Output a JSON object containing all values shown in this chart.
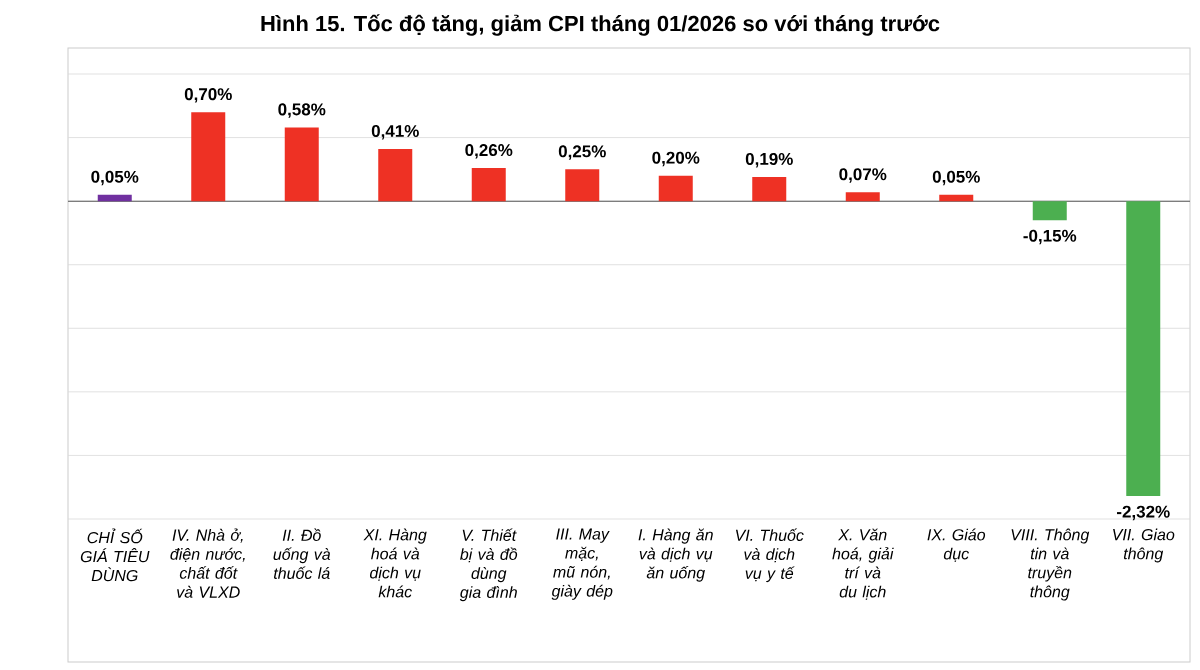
{
  "chart_data": {
    "type": "bar",
    "title": "Hình 15. Tốc độ tăng, giảm CPI tháng 01/2026 so với tháng trước",
    "categories": [
      "CHỈ SỐ GIÁ TIÊU DÙNG",
      "IV. Nhà ở, điện nước, chất đốt và VLXD",
      "II. Đồ uống và thuốc lá",
      "XI. Hàng hoá và dịch vụ khác",
      "V. Thiết bị và đồ dùng gia đình",
      "III. May mặc, mũ nón, giày dép",
      "I. Hàng ăn và dịch vụ ăn uống",
      "VI. Thuốc và dịch vụ y tế",
      "X. Văn hoá, giải trí và du lịch",
      "IX. Giáo dục",
      "VIII. Thông tin và truyền thông",
      "VII. Giao thông"
    ],
    "values": [
      0.05,
      0.7,
      0.58,
      0.41,
      0.26,
      0.25,
      0.2,
      0.19,
      0.07,
      0.05,
      -0.15,
      -2.32
    ],
    "value_labels": [
      "0,05%",
      "0,70%",
      "0,58%",
      "0,41%",
      "0,26%",
      "0,25%",
      "0,20%",
      "0,19%",
      "0,07%",
      "0,05%",
      "-0,15%",
      "-2,32%"
    ],
    "colors": [
      "#7030a0",
      "#ee3124",
      "#ee3124",
      "#ee3124",
      "#ee3124",
      "#ee3124",
      "#ee3124",
      "#ee3124",
      "#ee3124",
      "#ee3124",
      "#4caf50",
      "#4caf50"
    ],
    "ylim": [
      -2.5,
      1.0
    ],
    "yticks": [
      {
        "value": -2.5,
        "label": null
      },
      {
        "value": -2.0,
        "label": null
      },
      {
        "value": -1.5,
        "label": null
      },
      {
        "value": -1.0,
        "label": null
      },
      {
        "value": -0.5,
        "label": null
      },
      {
        "value": 0,
        "label": null
      },
      {
        "value": 0.5,
        "label": null
      },
      {
        "value": 1.0,
        "label": null
      }
    ],
    "grid": "y",
    "tick_labels": "x"
  }
}
